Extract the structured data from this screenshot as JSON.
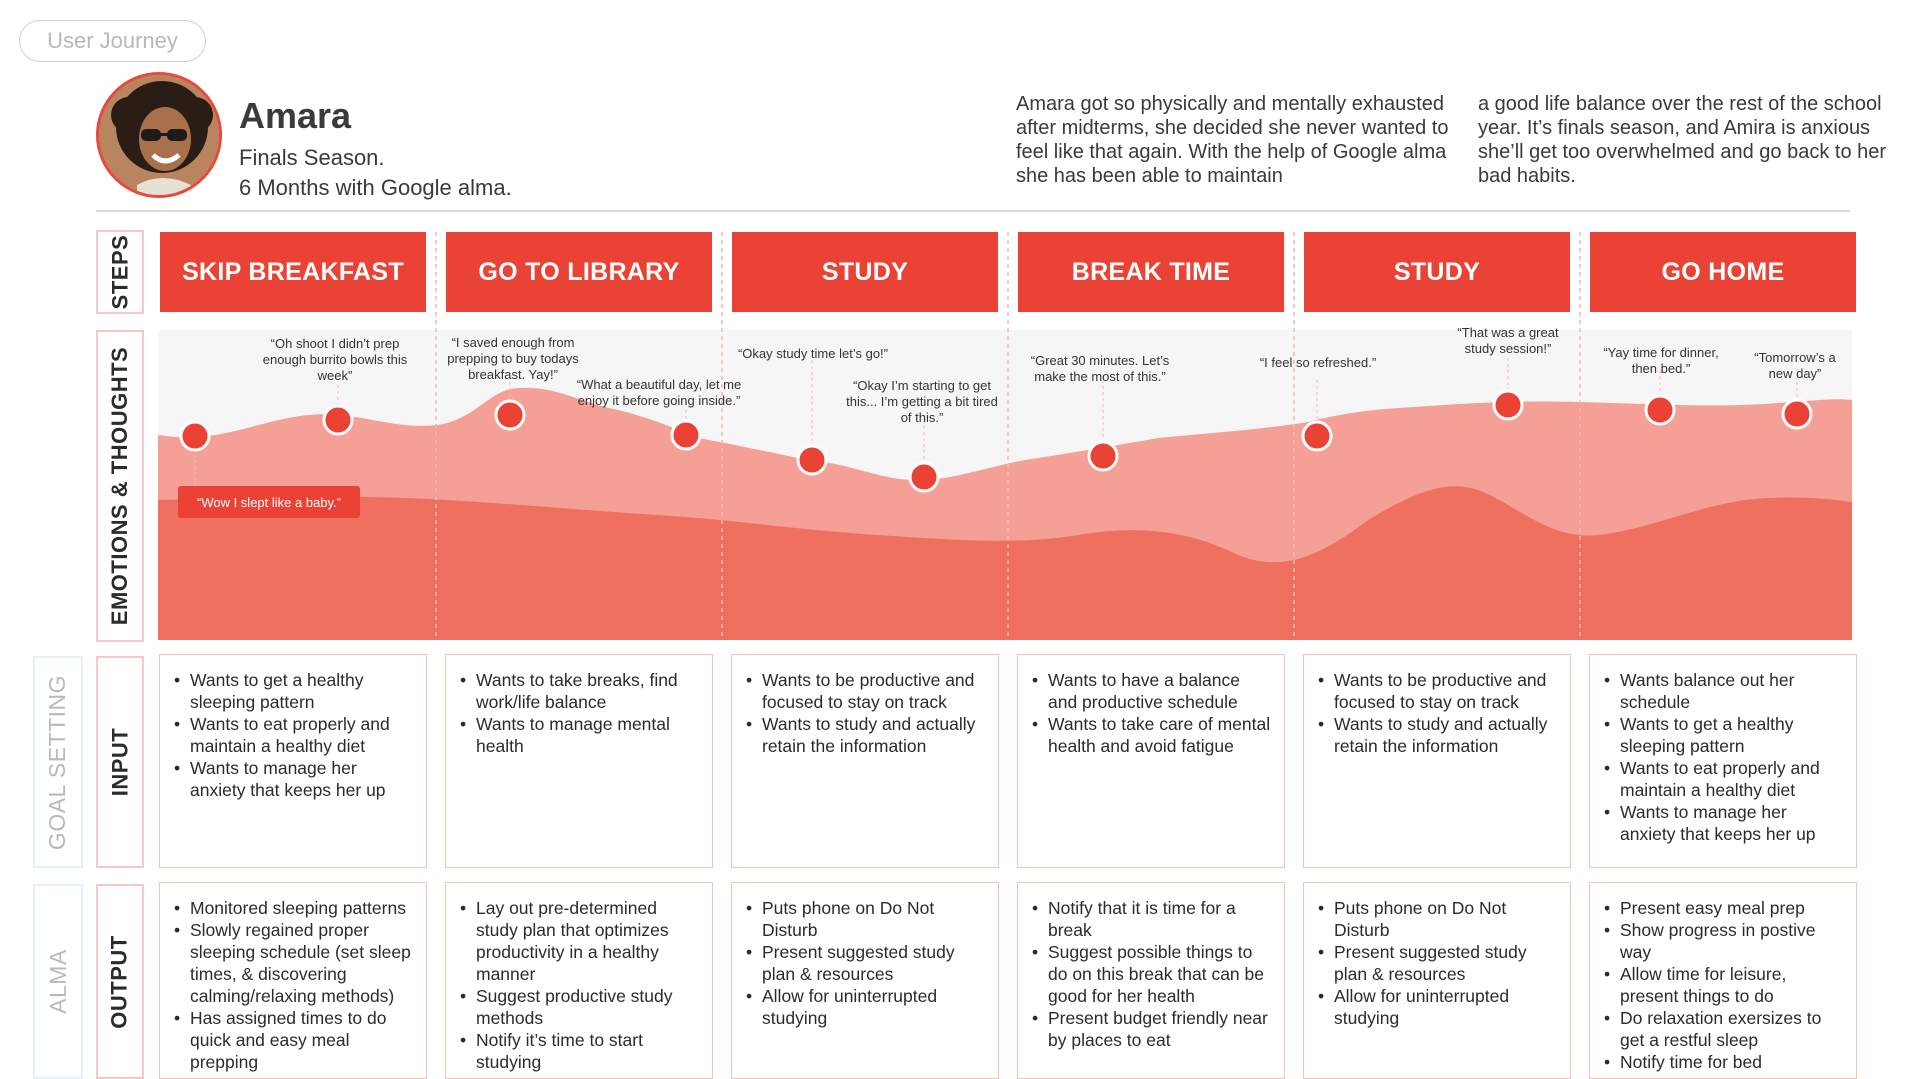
{
  "header": {
    "tag": "User Journey",
    "persona_name": "Amara",
    "persona_line1": "Finals Season.",
    "persona_line2": "6 Months with Google alma.",
    "desc_col1": "Amara got so physically and mentally exhausted after midterms, she decided she never wanted to feel like that again. With the help of Google alma she has been able to maintain",
    "desc_col2": "a good life balance over the rest of the school year. It’s finals season, and Amira is anxious she’ll get too overwhelmed and go back to her bad habits."
  },
  "row_labels": {
    "steps": "STEPS",
    "emotions": "EMOTIONS & THOUGHTS",
    "input": "INPUT",
    "output": "OUTPUT",
    "goal_setting": "GOAL SETTING",
    "alma": "ALMA"
  },
  "steps": [
    "SKIP BREAKFAST",
    "GO TO LIBRARY",
    "STUDY",
    "BREAK TIME",
    "STUDY",
    "GO HOME"
  ],
  "quotes": [
    "“Wow I slept like a baby.”",
    "“Oh shoot I didn’t prep enough burrito bowls this week”",
    "“I saved enough from prepping to buy todays breakfast. Yay!”",
    "“What a beautiful day, let me enjoy it before going inside.”",
    "“Okay study time let’s go!”",
    "“Okay I’m starting to get this... I’m getting a bit tired of this.”",
    "“Great 30 minutes. Let’s make the most of this.”",
    "“I feel so refreshed.”",
    "“That was a great study session!”",
    "“Yay time for dinner, then bed.”",
    "“Tomorrow’s a new day”"
  ],
  "inputs": [
    [
      "Wants to get a healthy sleeping pattern",
      "Wants to eat properly and maintain a healthy diet",
      "Wants to manage her anxiety that keeps her up"
    ],
    [
      "Wants to take breaks, find work/life balance",
      "Wants to manage mental health"
    ],
    [
      "Wants to be productive and focused to stay on track",
      "Wants to study and actually retain the information"
    ],
    [
      "Wants to have a balance and productive schedule",
      "Wants to take care of mental health and avoid fatigue"
    ],
    [
      "Wants to be productive and focused to stay on track",
      "Wants to study and actually retain the information"
    ],
    [
      "Wants balance out her schedule",
      "Wants to get a healthy sleeping pattern",
      "Wants to eat properly and maintain a healthy diet",
      "Wants to manage her anxiety that keeps her up"
    ]
  ],
  "outputs": [
    [
      "Monitored sleeping patterns",
      "Slowly regained proper sleeping schedule (set sleep times, & discovering calming/relaxing methods)",
      "Has assigned times to do quick and easy meal prepping"
    ],
    [
      "Lay out pre-determined study plan that optimizes productivity in a healthy manner",
      "Suggest productive study methods",
      "Notify it’s time to start studying"
    ],
    [
      "Puts phone on Do Not Disturb",
      "Present suggested study plan & resources",
      "Allow for uninterrupted studying"
    ],
    [
      "Notify that it is time for a break",
      "Suggest possible things to do on this break that can be good for her health",
      "Present budget friendly near by places to eat"
    ],
    [
      "Puts phone on Do Not Disturb",
      "Present suggested study plan & resources",
      "Allow for uninterrupted studying"
    ],
    [
      "Present easy meal prep",
      "Show progress in postive way",
      "Allow time for leisure, present things to do",
      "Do relaxation exersizes to get a restful sleep",
      "Notify time for bed"
    ]
  ],
  "colors": {
    "accent": "#ea4335",
    "area_light": "#f4a096",
    "area_dark": "#f07060",
    "card_border": "#f3c2bb"
  }
}
